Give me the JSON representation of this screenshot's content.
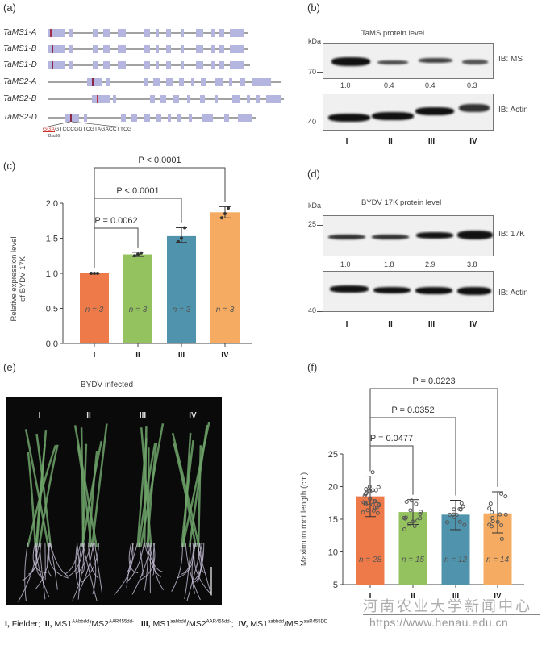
{
  "panels": {
    "a": {
      "label": "(a)",
      "genes": [
        "TaMS1-A",
        "TaMS1-B",
        "TaMS1-D",
        "TaMS2-A",
        "TaMS2-B",
        "TaMS2-D"
      ],
      "pam": "GGA",
      "sequence": "GTCCCGGTCGTAGACCTTCG",
      "enzyme": "Bsu36I"
    },
    "b": {
      "label": "(b)",
      "title": "TaMS protein level",
      "kda": "kDa",
      "markers": [
        "70",
        "40"
      ],
      "blot_labels": [
        "IB: MS",
        "IB: Actin"
      ],
      "quant": [
        "1.0",
        "0.4",
        "0.4",
        "0.3"
      ],
      "lanes": [
        "I",
        "II",
        "III",
        "IV"
      ]
    },
    "d": {
      "label": "(d)",
      "title": "BYDV 17K protein level",
      "kda": "kDa",
      "markers": [
        "25",
        "40"
      ],
      "blot_labels": [
        "IB: 17K",
        "IB: Actin"
      ],
      "quant": [
        "1.0",
        "1.8",
        "2.9",
        "3.8"
      ],
      "lanes": [
        "I",
        "II",
        "III",
        "IV"
      ]
    },
    "c": {
      "label": "(c)"
    },
    "e": {
      "label": "(e)",
      "title": "BYDV infected",
      "lanes": [
        "I",
        "II",
        "III",
        "IV"
      ]
    },
    "f": {
      "label": "(f)"
    }
  },
  "chart_data": [
    {
      "id": "c",
      "type": "bar",
      "categories": [
        "I",
        "II",
        "III",
        "IV"
      ],
      "values": [
        1.0,
        1.27,
        1.53,
        1.87
      ],
      "error_low": [
        1.0,
        1.24,
        1.44,
        1.79
      ],
      "error_high": [
        1.0,
        1.3,
        1.65,
        1.95
      ],
      "points": [
        [
          1.0,
          1.0,
          1.0
        ],
        [
          1.25,
          1.27,
          1.29
        ],
        [
          1.45,
          1.5,
          1.65
        ],
        [
          1.79,
          1.85,
          1.93
        ]
      ],
      "n_labels": [
        "n = 3",
        "n = 3",
        "n = 3",
        "n = 3"
      ],
      "colors": [
        "#ee7a4a",
        "#93c25e",
        "#4f94ac",
        "#f5ac62"
      ],
      "ylabel": [
        "Relative expression level",
        "of BYDV 17K"
      ],
      "ylim": [
        0,
        2.0
      ],
      "yticks": [
        "0.0",
        "0.5",
        "1.0",
        "1.5",
        "2.0"
      ],
      "comparisons": [
        {
          "from": "I",
          "to": "II",
          "label": "P = 0.0062"
        },
        {
          "from": "I",
          "to": "III",
          "label": "P < 0.0001"
        },
        {
          "from": "I",
          "to": "IV",
          "label": "P < 0.0001"
        }
      ]
    },
    {
      "id": "f",
      "type": "bar",
      "categories": [
        "I",
        "II",
        "III",
        "IV"
      ],
      "values": [
        18.5,
        16.1,
        15.7,
        15.9
      ],
      "error_low": [
        15.4,
        14.2,
        13.4,
        12.9
      ],
      "error_high": [
        21.6,
        18.0,
        17.9,
        19.2
      ],
      "n_labels": [
        "n = 28",
        "n = 15",
        "n = 12",
        "n = 14"
      ],
      "colors": [
        "#ee7a4a",
        "#93c25e",
        "#4f94ac",
        "#f5ac62"
      ],
      "ylabel": "Maximum root length (cm)",
      "ylim": [
        5,
        25
      ],
      "yticks": [
        "5",
        "10",
        "15",
        "20",
        "25"
      ],
      "comparisons": [
        {
          "from": "I",
          "to": "II",
          "label": "P = 0.0477"
        },
        {
          "from": "I",
          "to": "III",
          "label": "P = 0.0352"
        },
        {
          "from": "I",
          "to": "IV",
          "label": "P = 0.0223"
        }
      ]
    }
  ],
  "caption": [
    {
      "num": "I,",
      "text": " Fielder;"
    },
    {
      "num": "II,",
      "text": " MS1",
      "sup1": "AAbbdd",
      "mid": "/MS2",
      "sup2": "AAR455dd-",
      "end": ";"
    },
    {
      "num": "III,",
      "text": " MS1",
      "sup1": "aabbdd",
      "mid": "/MS2",
      "sup2": "AAR455dd-",
      "end": ";"
    },
    {
      "num": "IV,",
      "text": " MS1",
      "sup1": "aabbdd",
      "mid": "/MS2",
      "sup2": "aaR455DD",
      "end": ""
    }
  ],
  "watermark": {
    "line1": "河南农业大学新闻中心",
    "line2": "https://www.henau.edu.cn"
  }
}
